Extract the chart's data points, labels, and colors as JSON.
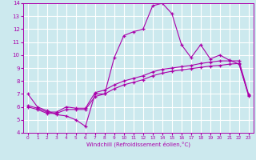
{
  "xlabel": "Windchill (Refroidissement éolien,°C)",
  "ylabel": "",
  "xlim": [
    -0.5,
    23.5
  ],
  "ylim": [
    4,
    14
  ],
  "xticks": [
    0,
    1,
    2,
    3,
    4,
    5,
    6,
    7,
    8,
    9,
    10,
    11,
    12,
    13,
    14,
    15,
    16,
    17,
    18,
    19,
    20,
    21,
    22,
    23
  ],
  "yticks": [
    4,
    5,
    6,
    7,
    8,
    9,
    10,
    11,
    12,
    13,
    14
  ],
  "background_color": "#cce9ee",
  "grid_color": "#ffffff",
  "line_color": "#aa00aa",
  "line1_x": [
    0,
    1,
    2,
    3,
    4,
    5,
    6,
    7,
    8,
    9,
    10,
    11,
    12,
    13,
    14,
    15,
    16,
    17,
    18,
    19,
    20,
    21,
    22,
    23
  ],
  "line1_y": [
    7.0,
    6.0,
    5.7,
    5.4,
    5.3,
    5.0,
    4.5,
    7.0,
    7.0,
    9.8,
    11.5,
    11.8,
    12.0,
    13.8,
    14.0,
    13.2,
    10.8,
    9.8,
    10.8,
    9.7,
    10.0,
    9.6,
    9.3,
    6.9
  ],
  "line2_x": [
    0,
    1,
    2,
    3,
    4,
    5,
    6,
    7,
    8,
    9,
    10,
    11,
    12,
    13,
    14,
    15,
    16,
    17,
    18,
    19,
    20,
    21,
    22,
    23
  ],
  "line2_y": [
    6.0,
    5.8,
    5.5,
    5.5,
    5.8,
    5.8,
    5.8,
    6.8,
    7.0,
    7.4,
    7.7,
    7.9,
    8.1,
    8.4,
    8.6,
    8.75,
    8.85,
    8.95,
    9.05,
    9.15,
    9.2,
    9.3,
    9.35,
    6.85
  ],
  "line3_x": [
    0,
    1,
    2,
    3,
    4,
    5,
    6,
    7,
    8,
    9,
    10,
    11,
    12,
    13,
    14,
    15,
    16,
    17,
    18,
    19,
    20,
    21,
    22,
    23
  ],
  "line3_y": [
    6.1,
    5.9,
    5.6,
    5.6,
    6.0,
    5.9,
    5.9,
    7.1,
    7.3,
    7.7,
    8.0,
    8.2,
    8.4,
    8.7,
    8.9,
    9.0,
    9.1,
    9.2,
    9.35,
    9.45,
    9.55,
    9.55,
    9.55,
    6.95
  ]
}
